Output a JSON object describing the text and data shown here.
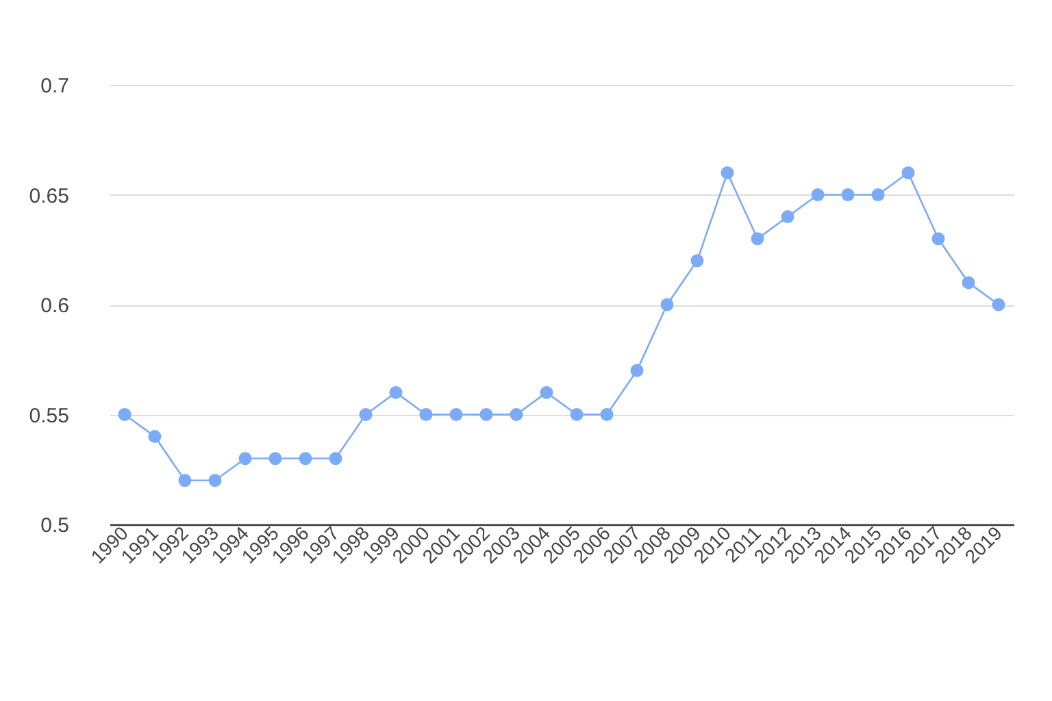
{
  "chart_data": {
    "type": "line",
    "categories": [
      "1990",
      "1991",
      "1992",
      "1993",
      "1994",
      "1995",
      "1996",
      "1997",
      "1998",
      "1999",
      "2000",
      "2001",
      "2002",
      "2003",
      "2004",
      "2005",
      "2006",
      "2007",
      "2008",
      "2009",
      "2010",
      "2011",
      "2012",
      "2013",
      "2014",
      "2015",
      "2016",
      "2017",
      "2018",
      "2019"
    ],
    "series": [
      {
        "color": "#7baaf7",
        "values": [
          0.55,
          0.54,
          0.52,
          0.52,
          0.53,
          0.53,
          0.53,
          0.53,
          0.55,
          0.56,
          0.55,
          0.55,
          0.55,
          0.55,
          0.56,
          0.55,
          0.55,
          0.57,
          0.6,
          0.62,
          0.66,
          0.63,
          0.64,
          0.65,
          0.65,
          0.65,
          0.66,
          0.63,
          0.61,
          0.6
        ]
      }
    ],
    "ylim": [
      0.5,
      0.7
    ],
    "yticks": [
      0.5,
      0.55,
      0.6,
      0.65,
      0.7
    ],
    "grid": "y",
    "marker": "circle",
    "line_style": "solid"
  }
}
